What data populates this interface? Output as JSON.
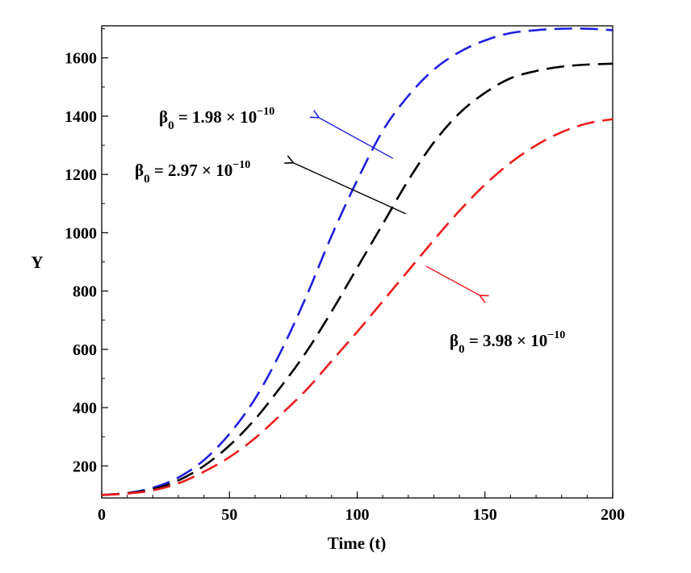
{
  "chart_data": {
    "type": "line",
    "title": "",
    "xlabel": "Time (t)",
    "ylabel": "Y",
    "xlim": [
      0,
      200
    ],
    "ylim": [
      90,
      1710
    ],
    "x_ticks": [
      0,
      50,
      100,
      150,
      200
    ],
    "y_ticks": [
      200,
      400,
      600,
      800,
      1000,
      1200,
      1400,
      1600
    ],
    "x_tick_labels": [
      "0",
      "50",
      "100",
      "150",
      "200"
    ],
    "y_tick_labels": [
      "200",
      "400",
      "600",
      "800",
      "1000",
      "1200",
      "1400",
      "1600"
    ],
    "grid": false,
    "series": [
      {
        "color": "#1f1fe0",
        "dash": "dashed",
        "x": [
          0,
          10,
          20,
          30,
          40,
          50,
          60,
          70,
          80,
          90,
          100,
          110,
          120,
          130,
          140,
          150,
          160,
          170,
          180,
          190,
          200
        ],
        "y": [
          100,
          107,
          125,
          160,
          220,
          310,
          430,
          590,
          780,
          990,
          1180,
          1350,
          1470,
          1560,
          1620,
          1660,
          1685,
          1695,
          1700,
          1700,
          1695
        ]
      },
      {
        "color": "#000000",
        "dash": "dashed",
        "x": [
          0,
          10,
          20,
          30,
          40,
          50,
          60,
          70,
          80,
          90,
          100,
          110,
          120,
          130,
          140,
          150,
          160,
          170,
          180,
          190,
          200
        ],
        "y": [
          100,
          106,
          120,
          150,
          200,
          270,
          360,
          470,
          590,
          730,
          880,
          1030,
          1180,
          1310,
          1410,
          1480,
          1530,
          1555,
          1570,
          1577,
          1580
        ]
      },
      {
        "color": "#ee1b1b",
        "dash": "dashed",
        "x": [
          0,
          10,
          20,
          30,
          40,
          50,
          60,
          70,
          80,
          90,
          100,
          110,
          120,
          130,
          140,
          150,
          160,
          170,
          180,
          190,
          200
        ],
        "y": [
          100,
          105,
          116,
          140,
          180,
          230,
          295,
          375,
          460,
          560,
          660,
          765,
          870,
          975,
          1075,
          1165,
          1240,
          1300,
          1345,
          1375,
          1390
        ]
      }
    ],
    "annotations": [
      {
        "base": "β",
        "sub": "0",
        "eq": " = 1.98 × 10",
        "sup": "−10",
        "series_index": 0,
        "arrow_color": "#1f1fe0",
        "point": [
          114,
          1255
        ],
        "arrow_to": [
          85,
          1395
        ]
      },
      {
        "base": "β",
        "sub": "0",
        "eq": " = 2.97 × 10",
        "sup": "−10",
        "series_index": 1,
        "arrow_color": "#000000",
        "point": [
          119,
          1065
        ],
        "arrow_to": [
          75,
          1240
        ]
      },
      {
        "base": "β",
        "sub": "0",
        "eq": " = 3.98 × 10",
        "sup": "−10",
        "series_index": 2,
        "arrow_color": "#ee1b1b",
        "point": [
          127,
          885
        ],
        "arrow_to": [
          148,
          785
        ]
      }
    ]
  }
}
